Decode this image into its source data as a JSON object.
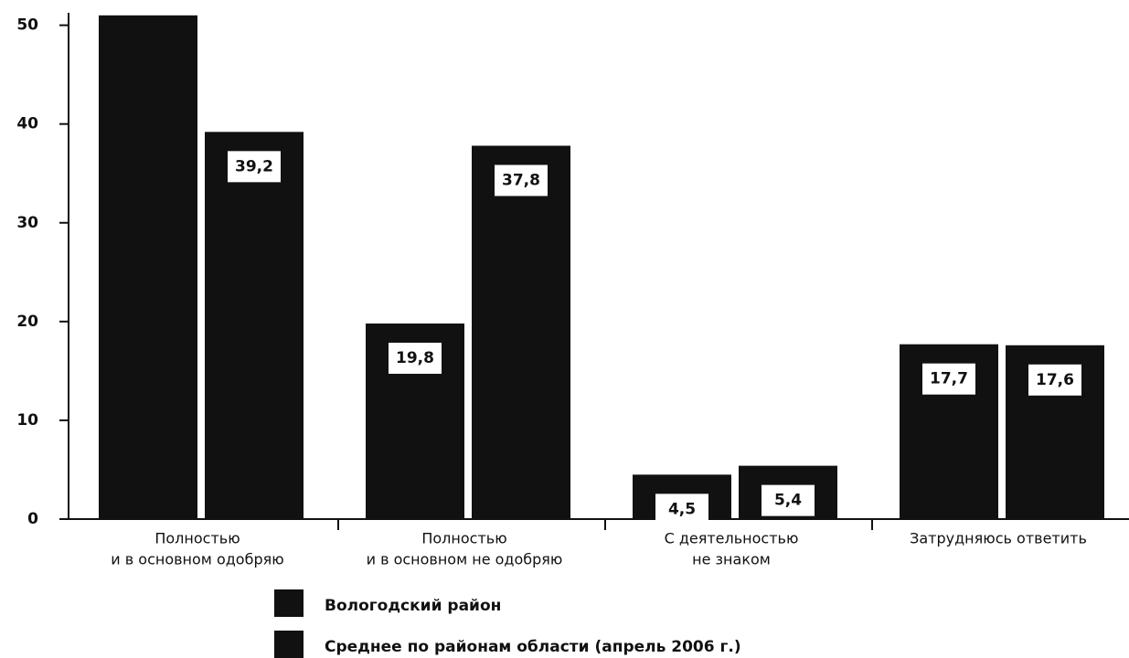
{
  "chart_data": {
    "type": "bar",
    "categories": [
      [
        "Полностью",
        "и в основном одобряю"
      ],
      [
        "Полностью",
        "и в основном не одобряю"
      ],
      [
        "С деятельностью",
        "не знаком"
      ],
      [
        "Затрудняюсь ответить"
      ]
    ],
    "series": [
      {
        "name": "Вологодский район",
        "color": "#111111",
        "values": [
          51,
          19.8,
          4.5,
          17.7
        ],
        "value_labels": [
          null,
          "19,8",
          "4,5",
          "17,7"
        ]
      },
      {
        "name": "Среднее по районам области (апрель 2006 г.)",
        "color": "#111111",
        "values": [
          39.2,
          37.8,
          5.4,
          17.6
        ],
        "value_labels": [
          "39,2",
          "37,8",
          "5,4",
          "17,6"
        ]
      }
    ],
    "ylim": [
      0,
      52
    ],
    "yticks": [
      0,
      10,
      20,
      30,
      40,
      50
    ]
  }
}
